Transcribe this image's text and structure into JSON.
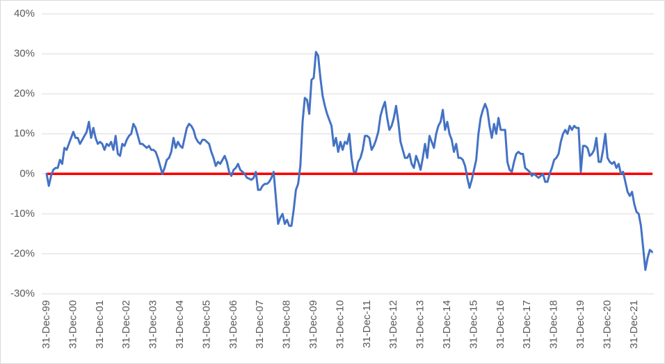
{
  "chart_data": {
    "type": "line",
    "categories": [
      "31-Dec-99",
      null,
      null,
      null,
      null,
      null,
      null,
      null,
      null,
      null,
      null,
      null,
      "31-Dec-00",
      null,
      null,
      null,
      null,
      null,
      null,
      null,
      null,
      null,
      null,
      null,
      "31-Dec-01",
      null,
      null,
      null,
      null,
      null,
      null,
      null,
      null,
      null,
      null,
      null,
      "31-Dec-02",
      null,
      null,
      null,
      null,
      null,
      null,
      null,
      null,
      null,
      null,
      null,
      "31-Dec-03",
      null,
      null,
      null,
      null,
      null,
      null,
      null,
      null,
      null,
      null,
      null,
      "31-Dec-04",
      null,
      null,
      null,
      null,
      null,
      null,
      null,
      null,
      null,
      null,
      null,
      "31-Dec-05",
      null,
      null,
      null,
      null,
      null,
      null,
      null,
      null,
      null,
      null,
      null,
      "31-Dec-06",
      null,
      null,
      null,
      null,
      null,
      null,
      null,
      null,
      null,
      null,
      null,
      "31-Dec-07",
      null,
      null,
      null,
      null,
      null,
      null,
      null,
      null,
      null,
      null,
      null,
      "31-Dec-08",
      null,
      null,
      null,
      null,
      null,
      null,
      null,
      null,
      null,
      null,
      null,
      "31-Dec-09",
      null,
      null,
      null,
      null,
      null,
      null,
      null,
      null,
      null,
      null,
      null,
      "31-Dec-10",
      null,
      null,
      null,
      null,
      null,
      null,
      null,
      null,
      null,
      null,
      null,
      "31-Dec-11",
      null,
      null,
      null,
      null,
      null,
      null,
      null,
      null,
      null,
      null,
      null,
      "31-Dec-12",
      null,
      null,
      null,
      null,
      null,
      null,
      null,
      null,
      null,
      null,
      null,
      "31-Dec-13",
      null,
      null,
      null,
      null,
      null,
      null,
      null,
      null,
      null,
      null,
      null,
      "31-Dec-14",
      null,
      null,
      null,
      null,
      null,
      null,
      null,
      null,
      null,
      null,
      null,
      "31-Dec-15",
      null,
      null,
      null,
      null,
      null,
      null,
      null,
      null,
      null,
      null,
      null,
      "31-Dec-16",
      null,
      null,
      null,
      null,
      null,
      null,
      null,
      null,
      null,
      null,
      null,
      "31-Dec-17",
      null,
      null,
      null,
      null,
      null,
      null,
      null,
      null,
      null,
      null,
      null,
      "31-Dec-18",
      null,
      null,
      null,
      null,
      null,
      null,
      null,
      null,
      null,
      null,
      null,
      "31-Dec-19",
      null,
      null,
      null,
      null,
      null,
      null,
      null,
      null,
      null,
      null,
      null,
      "31-Dec-20",
      null,
      null,
      null,
      null,
      null,
      null,
      null,
      null,
      null,
      null,
      null,
      "31-Dec-21",
      null,
      null,
      null,
      null,
      null,
      null,
      null,
      null
    ],
    "values": [
      0,
      -3,
      -0.5,
      1,
      1.5,
      1.5,
      3.5,
      2.5,
      6.5,
      6,
      7.5,
      9,
      10.5,
      9,
      9,
      7.5,
      8.5,
      9.5,
      10.5,
      13,
      9,
      11.5,
      9,
      7.5,
      8,
      7.5,
      6,
      7.5,
      7,
      8,
      6,
      9.5,
      5,
      4.5,
      7.5,
      7,
      8.5,
      9.5,
      10,
      12.5,
      11.5,
      9.5,
      7.5,
      7.5,
      7,
      6.5,
      7,
      6,
      6,
      5.5,
      4,
      2,
      0,
      1.5,
      3.5,
      4,
      5.5,
      9,
      6.5,
      8,
      7,
      6.5,
      9,
      11.5,
      12.5,
      12,
      11,
      9,
      8,
      7.5,
      8.5,
      8.5,
      8,
      7.5,
      5.5,
      4,
      2,
      3,
      2.5,
      3.5,
      4.5,
      3,
      0.5,
      -0.5,
      1,
      1.5,
      2.5,
      1,
      0.5,
      0,
      -1,
      -1.2,
      -1.5,
      -1,
      0.5,
      -4,
      -4,
      -3,
      -2.5,
      -2.5,
      -2,
      -1,
      0.5,
      -6,
      -12.5,
      -11,
      -10,
      -12.5,
      -11.5,
      -13,
      -13,
      -9,
      -4,
      -2.5,
      2,
      13,
      19,
      18.5,
      15,
      23.5,
      24,
      30.5,
      29.5,
      24,
      19.5,
      17,
      15,
      13.5,
      12,
      7,
      9,
      5.5,
      8,
      6,
      8,
      7.5,
      10,
      4,
      0.5,
      0.5,
      3,
      4,
      6,
      9.5,
      9.5,
      9,
      6,
      7,
      8.5,
      10.5,
      14.5,
      16.5,
      18,
      14,
      11,
      12,
      14,
      17,
      13,
      8,
      6,
      4,
      4,
      5,
      2.5,
      1.5,
      4.5,
      3,
      1,
      4,
      7.5,
      4,
      9.5,
      8,
      6.5,
      10,
      12,
      13,
      16,
      11,
      13,
      10,
      8.5,
      5.5,
      7.5,
      4,
      4,
      3.5,
      2,
      -1,
      -3.5,
      -1.5,
      1,
      3.5,
      10,
      14,
      16,
      17.5,
      16,
      12,
      9,
      12.5,
      10,
      14,
      11,
      11,
      11,
      3,
      1,
      0.5,
      3,
      5,
      5.5,
      5,
      5,
      1.5,
      1,
      0.5,
      -0.5,
      0,
      -0.5,
      -1,
      -0.5,
      0,
      -2,
      -2,
      0,
      1.5,
      3.5,
      4,
      5,
      8,
      10,
      11,
      10,
      12,
      11,
      12,
      11.5,
      11.5,
      0.5,
      7,
      7,
      6.5,
      4.5,
      5,
      6,
      9,
      3,
      3,
      6,
      10,
      4,
      3,
      2.5,
      3,
      1.5,
      2.5,
      0,
      0.5,
      -2,
      -4.5,
      -5.5,
      -4.5,
      -7.5,
      -9.5,
      -10,
      -13,
      -18.5,
      -24,
      -21,
      -19,
      -19.5
    ],
    "color": "#4472c4",
    "zero_line": {
      "value": 0,
      "color": "#ff0000"
    },
    "ylim": [
      -30,
      40
    ],
    "yticks": [
      {
        "value": -30,
        "label": "-30%"
      },
      {
        "value": -20,
        "label": "-20%"
      },
      {
        "value": -10,
        "label": "-10%"
      },
      {
        "value": 0,
        "label": "0%"
      },
      {
        "value": 10,
        "label": "10%"
      },
      {
        "value": 20,
        "label": "20%"
      },
      {
        "value": 30,
        "label": "30%"
      },
      {
        "value": 40,
        "label": "40%"
      }
    ],
    "grid": true
  }
}
